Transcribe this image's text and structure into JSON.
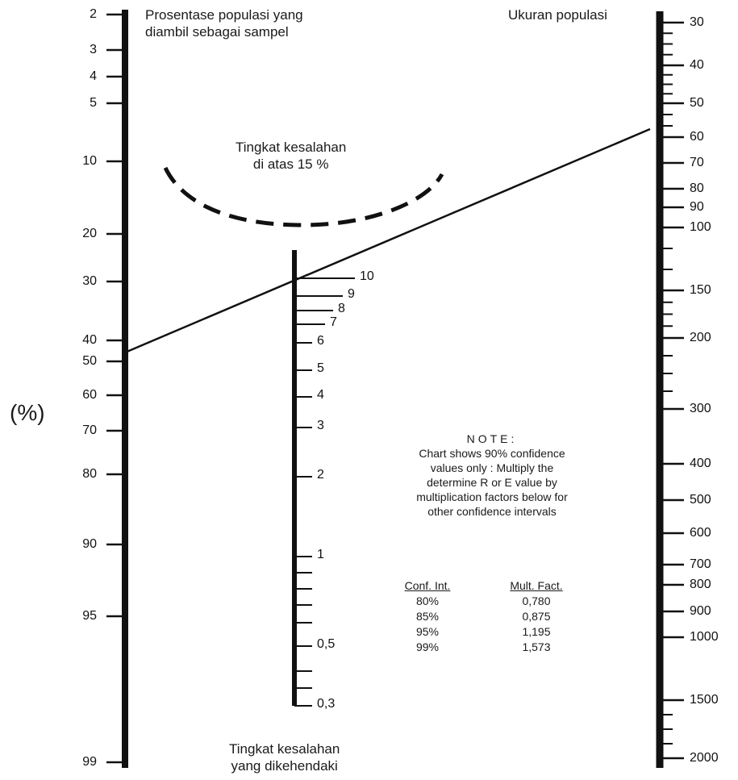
{
  "left_axis": {
    "title": "Prosentase populasi yang diambil sebagai sampel",
    "title_lines": [
      "Prosentase populasi yang",
      "diambil sebagai sampel"
    ],
    "unit_label": "(%)",
    "ticks": [
      "2",
      "3",
      "4",
      "5",
      "10",
      "20",
      "30",
      "40",
      "50",
      "60",
      "70",
      "80",
      "90",
      "95",
      "99"
    ]
  },
  "middle_axis": {
    "title_lines": [
      "Tingkat kesalahan",
      "yang dikehendaki"
    ],
    "ticks": [
      "10",
      "9",
      "8",
      "7",
      "6",
      "5",
      "4",
      "3",
      "2",
      "1",
      "0,5",
      "0,3"
    ],
    "region_label_lines": [
      "Tingkat kesalahan",
      "di atas 15 %"
    ]
  },
  "right_axis": {
    "title": "Ukuran populasi",
    "ticks": [
      "30",
      "40",
      "50",
      "60",
      "70",
      "80",
      "90",
      "100",
      "150",
      "200",
      "300",
      "400",
      "500",
      "600",
      "700",
      "800",
      "900",
      "1000",
      "1500",
      "2000"
    ]
  },
  "note": {
    "title": "NOTE:",
    "lines": [
      "Chart shows 90% confidence",
      "values only : Multiply the",
      "determine R or E value by",
      "multiplication factors below for",
      "other confidence intervals"
    ]
  },
  "multiplication_table": {
    "headers": [
      "Conf. Int.",
      "Mult. Fact."
    ],
    "rows": [
      [
        "80%",
        "0,780"
      ],
      [
        "85%",
        "0,875"
      ],
      [
        "95%",
        "1,195"
      ],
      [
        "99%",
        "1,573"
      ]
    ]
  },
  "colors": {
    "ink": "#111111",
    "background": "#ffffff"
  }
}
